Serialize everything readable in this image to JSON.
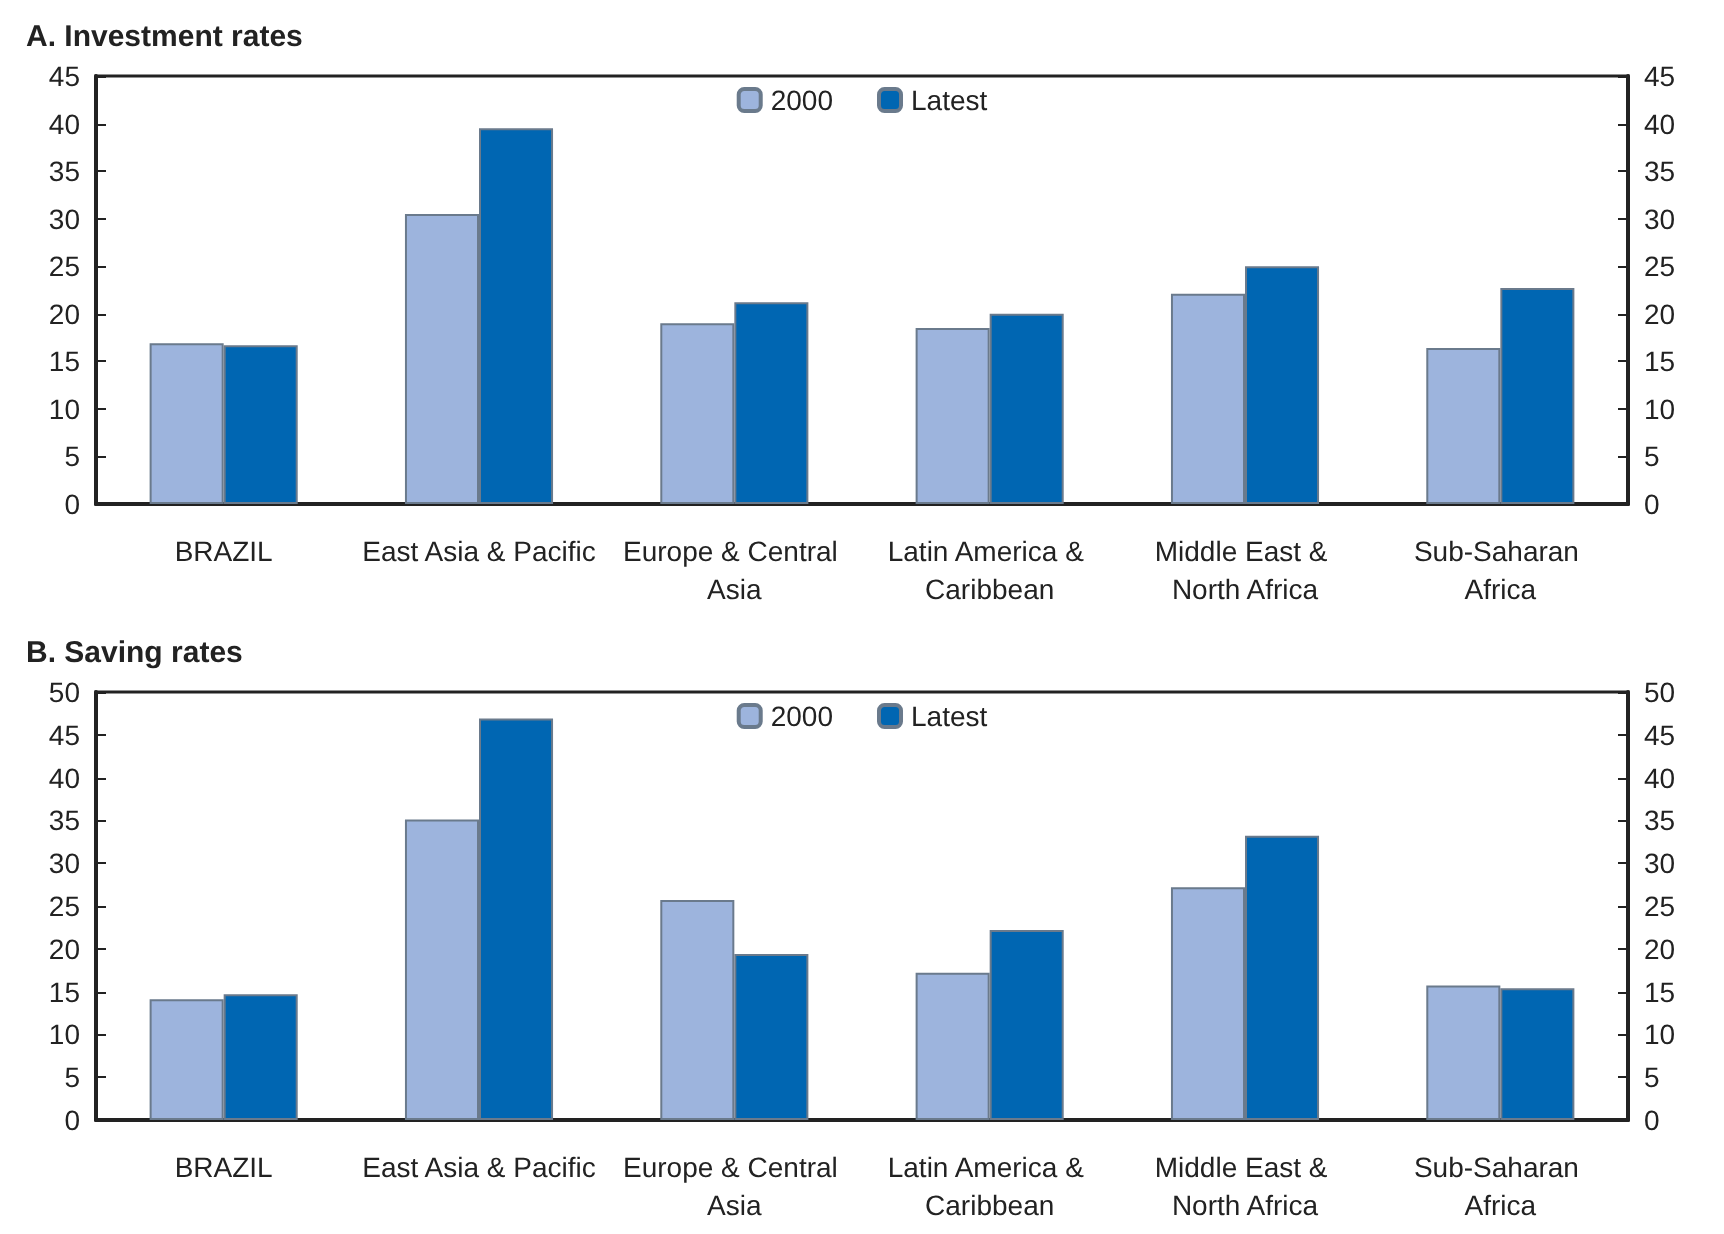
{
  "chart_data": [
    {
      "type": "bar",
      "title": "A. Investment rates",
      "categories": [
        "BRAZIL",
        "East Asia & Pacific",
        "Europe & Central Asia",
        "Latin America & Caribbean",
        "Middle East & North Africa",
        "Sub-Saharan Africa"
      ],
      "series": [
        {
          "name": "2000",
          "color": "#9db4dd",
          "values": [
            16.9,
            30.5,
            19.0,
            18.5,
            22.1,
            16.4
          ]
        },
        {
          "name": "Latest",
          "color": "#0066b2",
          "values": [
            16.7,
            39.5,
            21.2,
            20.0,
            25.0,
            22.7
          ]
        }
      ],
      "ylim": [
        0,
        45
      ],
      "yticks": [
        0,
        5,
        10,
        15,
        20,
        25,
        30,
        35,
        40,
        45
      ],
      "y2lim": [
        0,
        45
      ],
      "y2ticks": [
        0,
        5,
        10,
        15,
        20,
        25,
        30,
        35,
        40,
        45
      ],
      "grid": false,
      "legend": "top"
    },
    {
      "type": "bar",
      "title": "B. Saving rates",
      "categories": [
        "BRAZIL",
        "East Asia & Pacific",
        "Europe & Central Asia",
        "Latin America & Caribbean",
        "Middle East & North Africa",
        "Sub-Saharan Africa"
      ],
      "series": [
        {
          "name": "2000",
          "color": "#9db4dd",
          "values": [
            14.1,
            35.1,
            25.7,
            17.2,
            27.2,
            15.7
          ]
        },
        {
          "name": "Latest",
          "color": "#0066b2",
          "values": [
            14.7,
            46.9,
            19.4,
            22.2,
            33.2,
            15.4
          ]
        }
      ],
      "ylim": [
        0,
        50
      ],
      "yticks": [
        0,
        5,
        10,
        15,
        20,
        25,
        30,
        35,
        40,
        45,
        50
      ],
      "y2lim": [
        0,
        50
      ],
      "y2ticks": [
        0,
        5,
        10,
        15,
        20,
        25,
        30,
        35,
        40,
        45,
        50
      ],
      "grid": false,
      "legend": "top"
    }
  ]
}
